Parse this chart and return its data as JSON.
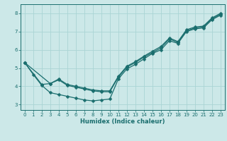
{
  "xlabel": "Humidex (Indice chaleur)",
  "bg_color": "#cce8e8",
  "line_color": "#1a6e6e",
  "grid_color": "#aad4d4",
  "xlim": [
    -0.5,
    23.5
  ],
  "ylim": [
    2.7,
    8.5
  ],
  "yticks": [
    3,
    4,
    5,
    6,
    7,
    8
  ],
  "xticks": [
    0,
    1,
    2,
    3,
    4,
    5,
    6,
    7,
    8,
    9,
    10,
    11,
    12,
    13,
    14,
    15,
    16,
    17,
    18,
    19,
    20,
    21,
    22,
    23
  ],
  "line1_x": [
    0,
    1,
    2,
    3,
    4,
    5,
    6,
    7,
    8,
    9,
    10,
    11,
    12,
    13,
    14,
    15,
    16,
    17,
    18,
    19,
    20,
    21,
    22,
    23
  ],
  "line1_y": [
    5.3,
    4.65,
    4.05,
    3.65,
    3.55,
    3.45,
    3.35,
    3.25,
    3.2,
    3.25,
    3.3,
    4.4,
    4.95,
    5.2,
    5.5,
    5.8,
    6.0,
    6.5,
    6.35,
    7.0,
    7.15,
    7.2,
    7.65,
    7.9
  ],
  "line2_x": [
    0,
    2,
    3,
    4,
    5,
    6,
    7,
    8,
    9,
    10,
    11,
    12,
    13,
    14,
    15,
    16,
    17,
    18,
    19,
    20,
    21,
    22,
    23
  ],
  "line2_y": [
    5.3,
    4.1,
    4.15,
    4.35,
    4.05,
    3.95,
    3.85,
    3.75,
    3.7,
    3.7,
    4.5,
    5.05,
    5.3,
    5.6,
    5.85,
    6.1,
    6.6,
    6.4,
    7.05,
    7.2,
    7.25,
    7.7,
    7.95
  ],
  "line3_x": [
    0,
    3,
    4,
    5,
    6,
    7,
    8,
    9,
    10,
    11,
    12,
    13,
    14,
    15,
    16,
    17,
    18,
    19,
    20,
    21,
    22,
    23
  ],
  "line3_y": [
    5.3,
    4.15,
    4.4,
    4.1,
    4.0,
    3.9,
    3.8,
    3.75,
    3.75,
    4.55,
    5.1,
    5.35,
    5.65,
    5.92,
    6.18,
    6.65,
    6.45,
    7.1,
    7.25,
    7.3,
    7.75,
    8.0
  ]
}
